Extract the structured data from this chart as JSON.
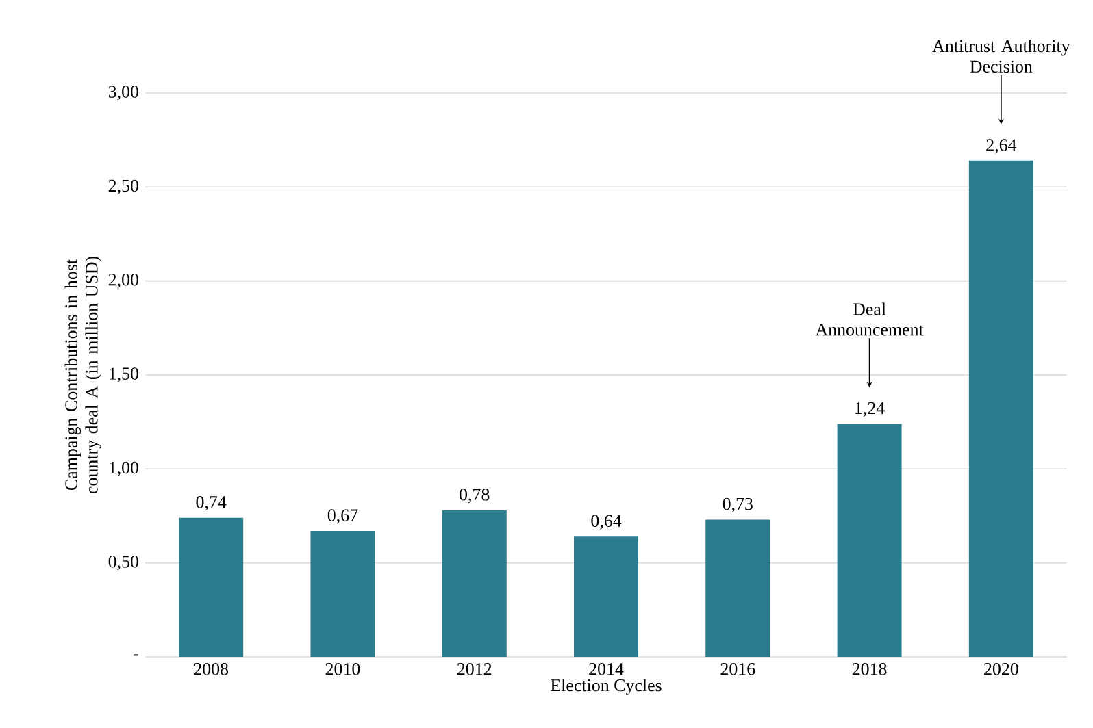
{
  "chart_data": {
    "type": "bar",
    "xlabel": "Election Cycles",
    "ylabel": "Campaign Contributions in host country deal A (in million USD)",
    "categories": [
      "2008",
      "2010",
      "2012",
      "2014",
      "2016",
      "2018",
      "2020"
    ],
    "values": [
      0.74,
      0.67,
      0.78,
      0.64,
      0.73,
      1.24,
      2.64
    ],
    "value_labels": [
      "0,74",
      "0,67",
      "0,78",
      "0,64",
      "0,73",
      "1,24",
      "2,64"
    ],
    "color": "#2a7b8c",
    "ylim": [
      0,
      3
    ],
    "yticks": [
      {
        "value": 0,
        "label": "-"
      },
      {
        "value": 0.5,
        "label": "0,50"
      },
      {
        "value": 1,
        "label": "1,00"
      },
      {
        "value": 1.5,
        "label": "1,50"
      },
      {
        "value": 2,
        "label": "2,00"
      },
      {
        "value": 2.5,
        "label": "2,50"
      },
      {
        "value": 3,
        "label": "3,00"
      }
    ],
    "grid": "y",
    "annotations": [
      "Deal Announcement",
      "Antitrust Authority Decision"
    ]
  }
}
